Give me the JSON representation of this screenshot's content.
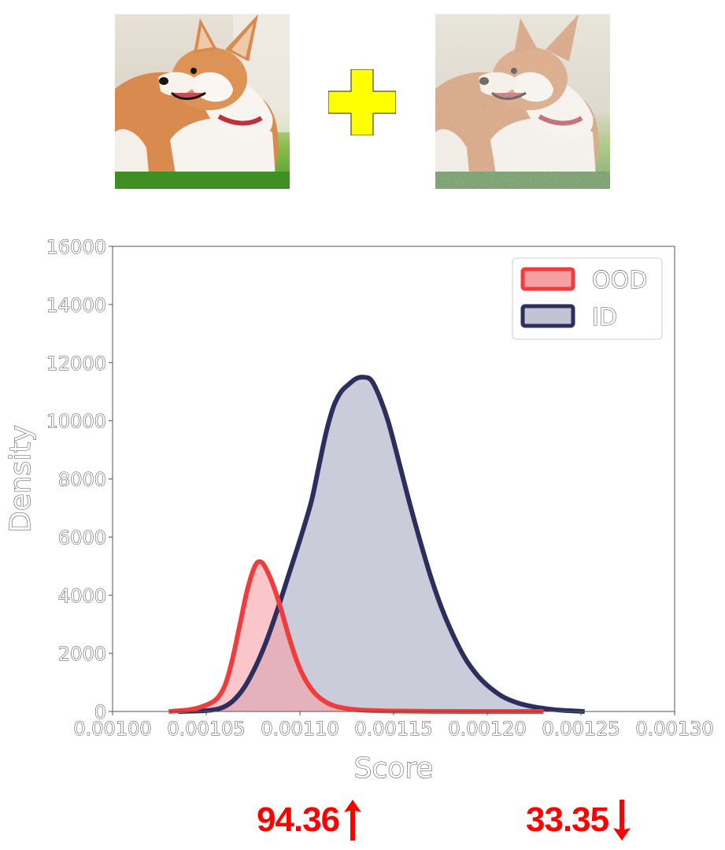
{
  "images": {
    "left": {
      "icon": "corgi-photo-clean"
    },
    "right": {
      "icon": "corgi-photo-noisy"
    },
    "operator": {
      "icon": "plus-icon",
      "color": "#ffff00"
    }
  },
  "chart_data": {
    "type": "area",
    "xlabel": "Score",
    "ylabel": "Density",
    "xlim": [
      0.001,
      0.0013
    ],
    "ylim": [
      0,
      16000
    ],
    "x_ticks": [
      "0.00100",
      "0.00105",
      "0.00110",
      "0.00115",
      "0.00120",
      "0.00125",
      "0.00130"
    ],
    "y_ticks": [
      "0",
      "2000",
      "4000",
      "6000",
      "8000",
      "10000",
      "12000",
      "14000",
      "16000"
    ],
    "legend_position": "top-right",
    "grid": false,
    "series": [
      {
        "name": "OOD",
        "line_color": "#f03c3c",
        "fill_color": "#f6a0a6",
        "x": [
          0.00103,
          0.00104,
          0.001047,
          0.001055,
          0.00106,
          0.001064,
          0.001068,
          0.001072,
          0.001076,
          0.001079,
          0.001082,
          0.001086,
          0.00109,
          0.001094,
          0.001098,
          0.001102,
          0.001107,
          0.001112,
          0.001118,
          0.001125,
          0.001135,
          0.00115,
          0.00117,
          0.0012,
          0.00123
        ],
        "y": [
          0,
          50,
          150,
          400,
          900,
          1800,
          3000,
          4200,
          5000,
          5150,
          4900,
          4300,
          3500,
          2600,
          1800,
          1200,
          700,
          400,
          200,
          100,
          40,
          15,
          5,
          0,
          0
        ]
      },
      {
        "name": "ID",
        "line_color": "#2c2f5e",
        "fill_color": "#c2c3d2",
        "x": [
          0.001035,
          0.00105,
          0.001058,
          0.001064,
          0.00107,
          0.001076,
          0.001082,
          0.001088,
          0.001094,
          0.0011,
          0.001106,
          0.00111,
          0.001114,
          0.001118,
          0.001122,
          0.001126,
          0.00113,
          0.001134,
          0.001138,
          0.001142,
          0.001147,
          0.001152,
          0.001158,
          0.001164,
          0.00117,
          0.001176,
          0.001182,
          0.001188,
          0.001194,
          0.0012,
          0.001208,
          0.001216,
          0.001224,
          0.001232,
          0.00124,
          0.001252
        ],
        "y": [
          0,
          30,
          120,
          350,
          800,
          1500,
          2400,
          3500,
          4700,
          5900,
          7200,
          8400,
          9600,
          10500,
          11000,
          11250,
          11450,
          11500,
          11400,
          10900,
          10000,
          8800,
          7300,
          5900,
          4600,
          3500,
          2600,
          1850,
          1300,
          900,
          520,
          300,
          170,
          90,
          40,
          0
        ]
      }
    ]
  },
  "metrics": [
    {
      "value": "94.36",
      "direction": "up",
      "icon": "arrow-up-icon",
      "color": "#ff0000"
    },
    {
      "value": "33.35",
      "direction": "down",
      "icon": "arrow-down-icon",
      "color": "#ff0000"
    }
  ]
}
